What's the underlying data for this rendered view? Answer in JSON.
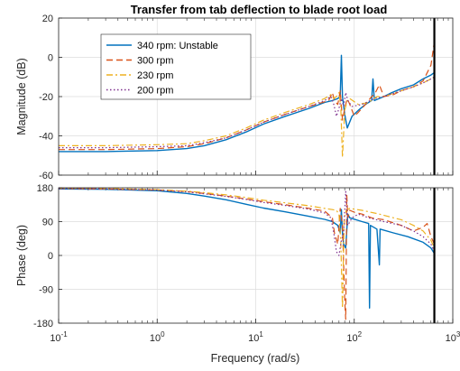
{
  "chart_data": {
    "type": "line",
    "title": "Transfer from tab deflection to blade root load",
    "xlabel": "Frequency  (rad/s)",
    "x_scale": "log",
    "xlim": [
      0.1,
      1000
    ],
    "x_ticks": [
      0.1,
      1,
      10,
      100,
      1000
    ],
    "x_tick_labels": [
      {
        "base": "10",
        "exp": "-1"
      },
      {
        "base": "10",
        "exp": "0"
      },
      {
        "base": "10",
        "exp": "1"
      },
      {
        "base": "10",
        "exp": "2"
      },
      {
        "base": "10",
        "exp": "3"
      }
    ],
    "grid": true,
    "legend_position": "top-left",
    "vline": {
      "x": 650,
      "color": "#000000"
    },
    "series": [
      {
        "name": "340 rpm: Unstable",
        "color": "#0072BD",
        "dash": "solid"
      },
      {
        "name": "300 rpm",
        "color": "#D95319",
        "dash": "dashed"
      },
      {
        "name": "230 rpm",
        "color": "#EDB120",
        "dash": "dashdot"
      },
      {
        "name": "200 rpm",
        "color": "#7E2F8E",
        "dash": "dotted"
      }
    ],
    "panels": [
      {
        "name": "magnitude",
        "ylabel": "Magnitude (dB)",
        "ylim": [
          -60,
          20
        ],
        "y_ticks": [
          -60,
          -40,
          -20,
          0,
          20
        ],
        "y_tick_labels": [
          "-60",
          "-40",
          "-20",
          "0",
          "20"
        ],
        "series": [
          {
            "points": [
              [
                0.1,
                -48
              ],
              [
                0.3,
                -48
              ],
              [
                1,
                -47.5
              ],
              [
                2,
                -46.5
              ],
              [
                3,
                -45
              ],
              [
                5,
                -42
              ],
              [
                8,
                -38
              ],
              [
                12,
                -34
              ],
              [
                20,
                -30
              ],
              [
                35,
                -26
              ],
              [
                50,
                -23
              ],
              [
                60,
                -22
              ],
              [
                68,
                -21
              ],
              [
                72,
                -20
              ],
              [
                74,
                1
              ],
              [
                76,
                -20
              ],
              [
                80,
                -29
              ],
              [
                85,
                -36
              ],
              [
                95,
                -30
              ],
              [
                110,
                -27
              ],
              [
                130,
                -24
              ],
              [
                150,
                -22
              ],
              [
                155,
                -11
              ],
              [
                160,
                -22
              ],
              [
                200,
                -20
              ],
              [
                240,
                -18
              ],
              [
                300,
                -16
              ],
              [
                400,
                -14
              ],
              [
                500,
                -11
              ],
              [
                600,
                -9
              ],
              [
                640,
                -8
              ]
            ]
          },
          {
            "points": [
              [
                0.1,
                -47
              ],
              [
                0.3,
                -47
              ],
              [
                1,
                -46.5
              ],
              [
                2,
                -45.5
              ],
              [
                3,
                -44
              ],
              [
                5,
                -41
              ],
              [
                8,
                -37
              ],
              [
                12,
                -33
              ],
              [
                20,
                -29
              ],
              [
                35,
                -25
              ],
              [
                55,
                -22
              ],
              [
                60,
                -18
              ],
              [
                63,
                -22
              ],
              [
                68,
                -24
              ],
              [
                72,
                -17
              ],
              [
                76,
                -32
              ],
              [
                80,
                -26
              ],
              [
                85,
                -21
              ],
              [
                90,
                -24
              ],
              [
                100,
                -30
              ],
              [
                110,
                -28
              ],
              [
                130,
                -24
              ],
              [
                150,
                -20
              ],
              [
                160,
                -19
              ],
              [
                180,
                -14
              ],
              [
                200,
                -20
              ],
              [
                250,
                -19
              ],
              [
                300,
                -17
              ],
              [
                400,
                -15
              ],
              [
                500,
                -12
              ],
              [
                600,
                -4
              ],
              [
                650,
                8
              ]
            ]
          },
          {
            "points": [
              [
                0.1,
                -45
              ],
              [
                0.3,
                -45
              ],
              [
                1,
                -44.5
              ],
              [
                2,
                -44
              ],
              [
                3,
                -42.5
              ],
              [
                5,
                -40
              ],
              [
                8,
                -36
              ],
              [
                12,
                -32
              ],
              [
                20,
                -28
              ],
              [
                35,
                -24
              ],
              [
                50,
                -21
              ],
              [
                58,
                -19
              ],
              [
                62,
                -21
              ],
              [
                66,
                -20
              ],
              [
                70,
                -18
              ],
              [
                73,
                -25
              ],
              [
                76,
                -51
              ],
              [
                80,
                -27
              ],
              [
                85,
                -22
              ],
              [
                90,
                -21
              ],
              [
                110,
                -24
              ],
              [
                140,
                -23
              ],
              [
                170,
                -20
              ],
              [
                200,
                -20
              ],
              [
                300,
                -17
              ],
              [
                400,
                -15
              ],
              [
                500,
                -13
              ],
              [
                600,
                -11
              ],
              [
                650,
                -10
              ]
            ]
          },
          {
            "points": [
              [
                0.1,
                -46
              ],
              [
                0.3,
                -46
              ],
              [
                1,
                -45.5
              ],
              [
                2,
                -45
              ],
              [
                3,
                -43.5
              ],
              [
                5,
                -41
              ],
              [
                8,
                -37
              ],
              [
                12,
                -33
              ],
              [
                20,
                -29
              ],
              [
                35,
                -25
              ],
              [
                50,
                -22
              ],
              [
                58,
                -20
              ],
              [
                62,
                -24
              ],
              [
                66,
                -30
              ],
              [
                70,
                -26
              ],
              [
                74,
                -21
              ],
              [
                78,
                -25
              ],
              [
                82,
                -18
              ],
              [
                86,
                -22
              ],
              [
                95,
                -25
              ],
              [
                120,
                -24
              ],
              [
                160,
                -21
              ],
              [
                200,
                -20
              ],
              [
                300,
                -17
              ],
              [
                400,
                -15
              ],
              [
                500,
                -13
              ],
              [
                600,
                -11
              ],
              [
                650,
                -10
              ]
            ]
          }
        ]
      },
      {
        "name": "phase",
        "ylabel": "Phase (deg)",
        "ylim": [
          -180,
          180
        ],
        "y_ticks": [
          -180,
          -90,
          0,
          90,
          180
        ],
        "y_tick_labels": [
          "-180",
          "-90",
          "0",
          "90",
          "180"
        ],
        "series": [
          {
            "points": [
              [
                0.1,
                177
              ],
              [
                0.3,
                176
              ],
              [
                1,
                172
              ],
              [
                2,
                165
              ],
              [
                3,
                158
              ],
              [
                5,
                148
              ],
              [
                8,
                136
              ],
              [
                12,
                126
              ],
              [
                20,
                116
              ],
              [
                35,
                104
              ],
              [
                50,
                96
              ],
              [
                60,
                90
              ],
              [
                68,
                80
              ],
              [
                72,
                60
              ],
              [
                74,
                122
              ],
              [
                76,
                60
              ],
              [
                78,
                30
              ],
              [
                82,
                20
              ],
              [
                86,
                110
              ],
              [
                90,
                100
              ],
              [
                120,
                90
              ],
              [
                140,
                85
              ],
              [
                143,
                -140
              ],
              [
                146,
                80
              ],
              [
                170,
                70
              ],
              [
                180,
                -25
              ],
              [
                183,
                70
              ],
              [
                250,
                60
              ],
              [
                350,
                50
              ],
              [
                500,
                35
              ],
              [
                600,
                20
              ],
              [
                650,
                5
              ]
            ]
          },
          {
            "points": [
              [
                0.1,
                178
              ],
              [
                0.3,
                177
              ],
              [
                1,
                174
              ],
              [
                2,
                170
              ],
              [
                3,
                165
              ],
              [
                5,
                158
              ],
              [
                8,
                150
              ],
              [
                12,
                143
              ],
              [
                20,
                135
              ],
              [
                35,
                125
              ],
              [
                50,
                118
              ],
              [
                60,
                100
              ],
              [
                63,
                60
              ],
              [
                68,
                30
              ],
              [
                72,
                125
              ],
              [
                76,
                80
              ],
              [
                80,
                -120
              ],
              [
                82,
                -170
              ],
              [
                84,
                160
              ],
              [
                86,
                100
              ],
              [
                90,
                120
              ],
              [
                100,
                115
              ],
              [
                120,
                110
              ],
              [
                150,
                100
              ],
              [
                200,
                95
              ],
              [
                300,
                80
              ],
              [
                400,
                65
              ],
              [
                500,
                75
              ],
              [
                550,
                85
              ],
              [
                600,
                50
              ],
              [
                650,
                30
              ]
            ]
          },
          {
            "points": [
              [
                0.1,
                179
              ],
              [
                0.3,
                178
              ],
              [
                1,
                175
              ],
              [
                2,
                171
              ],
              [
                3,
                167
              ],
              [
                5,
                161
              ],
              [
                8,
                154
              ],
              [
                12,
                147
              ],
              [
                20,
                140
              ],
              [
                35,
                132
              ],
              [
                50,
                125
              ],
              [
                60,
                122
              ],
              [
                66,
                120
              ],
              [
                70,
                110
              ],
              [
                73,
                40
              ],
              [
                76,
                -140
              ],
              [
                79,
                100
              ],
              [
                83,
                120
              ],
              [
                90,
                125
              ],
              [
                120,
                120
              ],
              [
                180,
                110
              ],
              [
                250,
                100
              ],
              [
                300,
                95
              ],
              [
                400,
                80
              ],
              [
                500,
                65
              ],
              [
                600,
                40
              ],
              [
                650,
                20
              ]
            ]
          },
          {
            "points": [
              [
                0.1,
                178
              ],
              [
                0.3,
                177
              ],
              [
                1,
                174
              ],
              [
                2,
                169
              ],
              [
                3,
                164
              ],
              [
                5,
                157
              ],
              [
                8,
                149
              ],
              [
                12,
                141
              ],
              [
                20,
                133
              ],
              [
                35,
                123
              ],
              [
                50,
                113
              ],
              [
                58,
                100
              ],
              [
                62,
                60
              ],
              [
                66,
                10
              ],
              [
                70,
                0
              ],
              [
                74,
                40
              ],
              [
                78,
                60
              ],
              [
                82,
                170
              ],
              [
                86,
                80
              ],
              [
                95,
                100
              ],
              [
                110,
                110
              ],
              [
                140,
                100
              ],
              [
                200,
                90
              ],
              [
                300,
                80
              ],
              [
                400,
                65
              ],
              [
                500,
                50
              ],
              [
                600,
                30
              ],
              [
                650,
                10
              ]
            ]
          }
        ]
      }
    ]
  }
}
